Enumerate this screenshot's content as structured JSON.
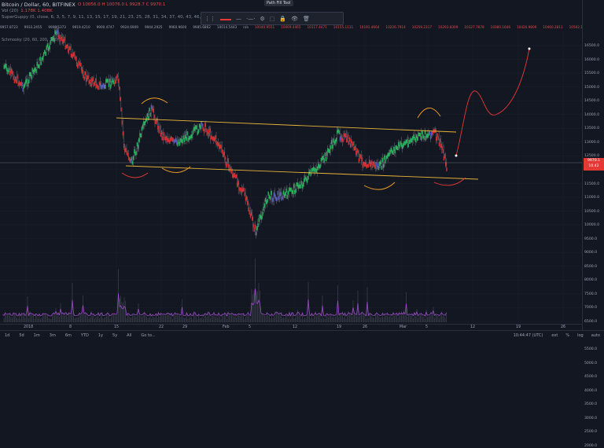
{
  "header": {
    "symbol": "Bitcoin / Dollar, 60, BITFINEX",
    "ohlc": "O 10056.0  H 10076.0  L 9928.7  C 9970.1",
    "vol_label": "Vol (20)",
    "vol_values": "1.178K  1.408K",
    "superguppy": "SuperGuppy (0, close, 6, 3, 5, 7, 9, 11, 13, 15, 17, 19, 21, 23, 25, 28, 31, 34, 37, 40, 43, 46, 49, 52, 55, 58, 61, 64, 67, 70)",
    "schmooky": "Schmooky (20, 60, 200, 200)",
    "ind_values_green": [
      "9957.8723",
      "9933.2455",
      "9909.5373",
      "9919.4210",
      "9900.4747",
      "9924.6909",
      "9944.2925",
      "9960.9600",
      "9985.6862",
      "10014.5443"
    ],
    "ind_values_red": [
      "10040.9551",
      "10069.4465",
      "10117.4471",
      "10155.1131",
      "10191.4664",
      "10226.7914",
      "10259.2317",
      "10293.8309",
      "10327.7878",
      "10380.1646",
      "10420.9809",
      "10460.2811",
      "10502.1207",
      "10574.9304",
      "10618.2030"
    ],
    "na": "n/a"
  },
  "toolbar": {
    "tooltip": "Path Fill Tool",
    "items": [
      "⋮⋮",
      "line",
      "—",
      "·—·—",
      "⚙",
      "⬚",
      "🔒",
      "👁",
      "🗑"
    ]
  },
  "price_axis": {
    "labels": [
      "16500.0",
      "16000.0",
      "15500.0",
      "15000.0",
      "14500.0",
      "14000.0",
      "13500.0",
      "13000.0",
      "12500.0",
      "12000.0",
      "11500.0",
      "11000.0",
      "10500.0",
      "10000.0",
      "9500.0",
      "9000.0",
      "8500.0",
      "8000.0",
      "7500.0",
      "7000.0",
      "6500.0",
      "6000.0",
      "5500.0",
      "5000.0",
      "4500.0",
      "4000.0",
      "3500.0",
      "3000.0",
      "2500.0",
      "2000.0"
    ],
    "current_price": "9970.1",
    "current_sub": "10.42"
  },
  "time_axis": {
    "labels": [
      "2018",
      "8",
      "15",
      "22",
      "29",
      "Feb",
      "5",
      "12",
      "19",
      "26",
      "Mar",
      "5",
      "12",
      "19",
      "26"
    ]
  },
  "bottom_bar": {
    "timeframes": [
      "1d",
      "5d",
      "1m",
      "3m",
      "6m",
      "YTD",
      "1y",
      "5y",
      "All",
      "Go to..."
    ],
    "clock": "10:44:47 (UTC)",
    "options": [
      "ext",
      "%",
      "log",
      "auto"
    ]
  },
  "colors": {
    "background": "#131722",
    "up": "#26a69a",
    "down": "#ef5350",
    "drawing_red": "#e53935",
    "drawing_orange": "#f7a325",
    "channel": "#e8b339",
    "volume": "#a94fd8"
  }
}
